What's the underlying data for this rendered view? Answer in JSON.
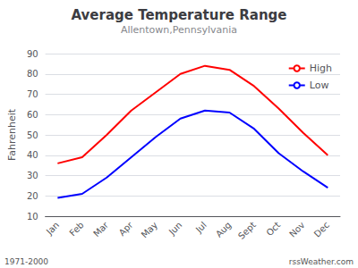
{
  "chart_data": {
    "type": "line",
    "title": "Average Temperature Range",
    "subtitle": "Allentown,Pennsylvania",
    "ylabel": "Fahrenheit",
    "categories": [
      "Jan",
      "Feb",
      "Mar",
      "Apr",
      "May",
      "Jun",
      "Jul",
      "Aug",
      "Sept",
      "Oct",
      "Nov",
      "Dec"
    ],
    "series": [
      {
        "name": "High",
        "color": "#ff0000",
        "values": [
          36,
          39,
          50,
          62,
          71,
          80,
          84,
          82,
          74,
          63,
          51,
          40
        ]
      },
      {
        "name": "Low",
        "color": "#0000ff",
        "values": [
          19,
          21,
          29,
          39,
          49,
          58,
          62,
          61,
          53,
          41,
          32,
          24
        ]
      }
    ],
    "ylim": [
      10,
      90
    ],
    "yticks": [
      10,
      20,
      30,
      40,
      50,
      60,
      70,
      80,
      90
    ],
    "grid": true,
    "legend": "upper right",
    "annotations": [
      "1971-2000",
      "rssWeather.com"
    ]
  }
}
